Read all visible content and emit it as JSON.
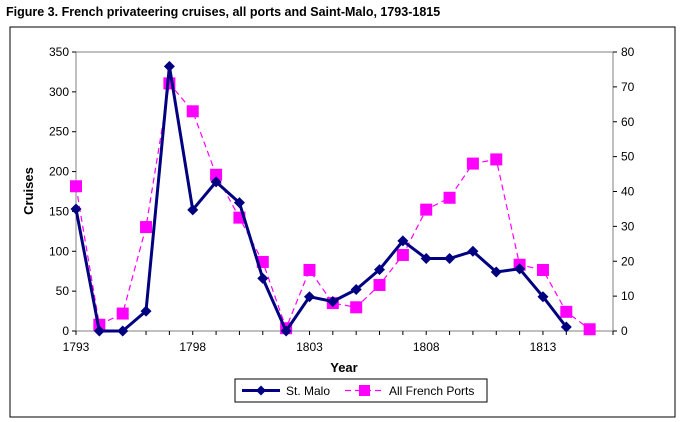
{
  "figure_title": "Figure 3. French privateering cruises, all ports and Saint-Malo, 1793-1815",
  "chart_data": {
    "type": "line",
    "title": "Figure 3. French privateering cruises, all ports and Saint-Malo, 1793-1815",
    "xlabel": "Year",
    "ylabel": "Cruises",
    "xlim": [
      1793,
      1816
    ],
    "ylim": [
      0,
      350
    ],
    "y2lim": [
      0,
      80
    ],
    "x_ticks": [
      1793,
      1798,
      1803,
      1808,
      1813
    ],
    "y_ticks": [
      0,
      50,
      100,
      150,
      200,
      250,
      300,
      350
    ],
    "y2_ticks": [
      0,
      10,
      20,
      30,
      40,
      50,
      60,
      70,
      80
    ],
    "grid": false,
    "legend_position": "bottom",
    "series": [
      {
        "name": "St. Malo",
        "axis": "left",
        "color": "#000080",
        "marker": "diamond",
        "line": "solid",
        "x": [
          1793,
          1794,
          1795,
          1796,
          1797,
          1798,
          1799,
          1800,
          1801,
          1802,
          1803,
          1804,
          1805,
          1806,
          1807,
          1808,
          1809,
          1810,
          1811,
          1812,
          1813,
          1814
        ],
        "values": [
          153,
          0,
          0,
          25,
          332,
          152,
          187,
          161,
          66,
          0,
          43,
          37,
          52,
          77,
          113,
          91,
          91,
          100,
          74,
          78,
          43,
          5
        ]
      },
      {
        "name": "All French Ports",
        "axis": "right",
        "color": "#FF00FF",
        "marker": "square",
        "line": "dashed",
        "x": [
          1793,
          1794,
          1795,
          1796,
          1797,
          1798,
          1799,
          1800,
          1801,
          1802,
          1803,
          1804,
          1805,
          1806,
          1807,
          1808,
          1809,
          1810,
          1811,
          1812,
          1813,
          1814,
          1815
        ],
        "values": [
          41.5,
          1.8,
          5,
          29.8,
          71,
          63,
          44.8,
          32.5,
          19.8,
          0.8,
          17.5,
          8,
          6.8,
          13.2,
          21.8,
          34.8,
          38.2,
          48,
          49.2,
          19,
          17.5,
          5.5,
          0.5
        ]
      }
    ]
  }
}
